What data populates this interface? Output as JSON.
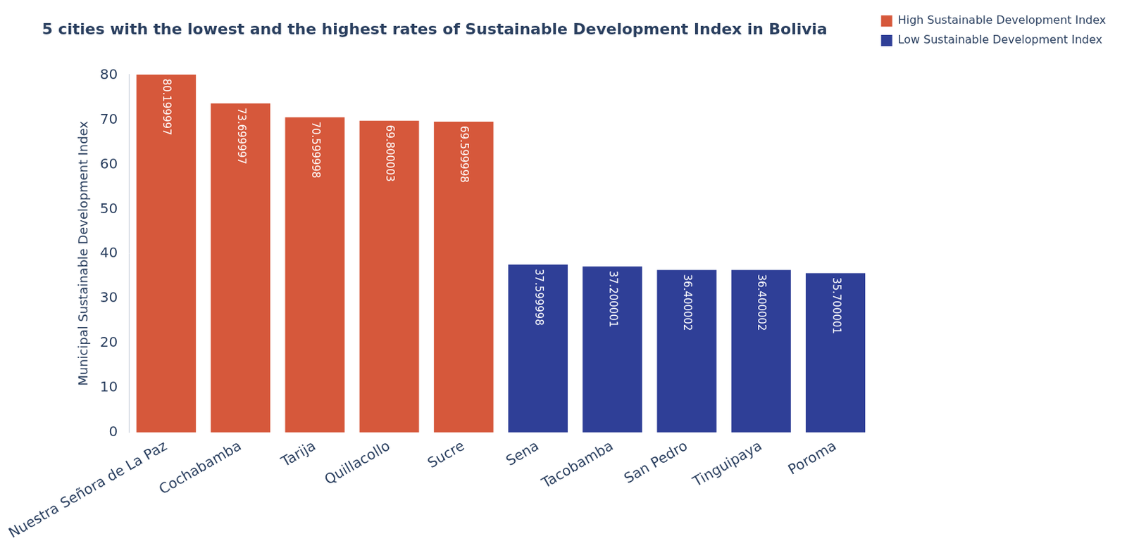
{
  "chart_data": {
    "type": "bar",
    "title": "5 cities with the lowest and the highest rates of Sustainable Development Index in Bolivia",
    "y_label": "Municipal Sustainable Development Index",
    "categories": [
      "Nuestra Señora de La Paz",
      "Cochabamba",
      "Tarija",
      "Quillacollo",
      "Sucre",
      "Sena",
      "Tacobamba",
      "San Pedro",
      "Tinguipaya",
      "Poroma"
    ],
    "series": [
      {
        "name": "High Sustainable Development Index",
        "color": "#d6583b",
        "values": [
          80.199997,
          73.699997,
          70.599998,
          69.800003,
          69.599998,
          null,
          null,
          null,
          null,
          null
        ]
      },
      {
        "name": "Low Sustainable Development Index",
        "color": "#2f3f97",
        "values": [
          null,
          null,
          null,
          null,
          null,
          37.599998,
          37.200001,
          36.400002,
          36.400002,
          35.700001
        ]
      }
    ],
    "ylim": [
      0,
      80.2
    ],
    "yticks": [
      0,
      10,
      20,
      30,
      40,
      50,
      60,
      70,
      80
    ],
    "grid": false,
    "legend": "top right",
    "data_labels": true
  }
}
